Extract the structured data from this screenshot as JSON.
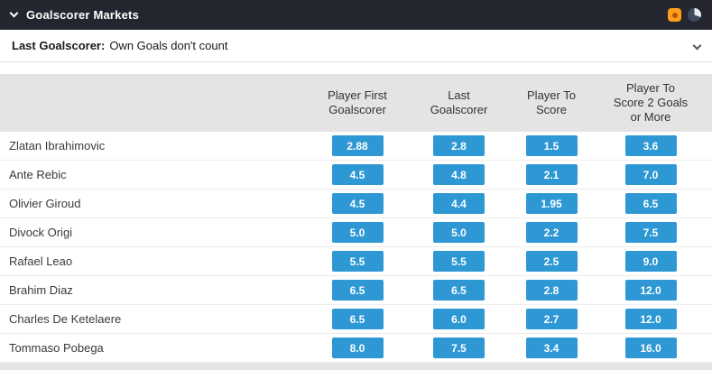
{
  "header": {
    "title": "Goalscorer Markets"
  },
  "subheader": {
    "label": "Last Goalscorer:",
    "note": "Own Goals don't count"
  },
  "table": {
    "columns": [
      "Player First Goalscorer",
      "Last Goalscorer",
      "Player To Score",
      "Player To Score 2 Goals or More"
    ],
    "rows": [
      {
        "player": "Zlatan Ibrahimovic",
        "odds": [
          "2.88",
          "2.8",
          "1.5",
          "3.6"
        ]
      },
      {
        "player": "Ante Rebic",
        "odds": [
          "4.5",
          "4.8",
          "2.1",
          "7.0"
        ]
      },
      {
        "player": "Olivier Giroud",
        "odds": [
          "4.5",
          "4.4",
          "1.95",
          "6.5"
        ]
      },
      {
        "player": "Divock Origi",
        "odds": [
          "5.0",
          "5.0",
          "2.2",
          "7.5"
        ]
      },
      {
        "player": "Rafael Leao",
        "odds": [
          "5.5",
          "5.5",
          "2.5",
          "9.0"
        ]
      },
      {
        "player": "Brahim Diaz",
        "odds": [
          "6.5",
          "6.5",
          "2.8",
          "12.0"
        ]
      },
      {
        "player": "Charles De Ketelaere",
        "odds": [
          "6.5",
          "6.0",
          "2.7",
          "12.0"
        ]
      },
      {
        "player": "Tommaso Pobega",
        "odds": [
          "8.0",
          "7.5",
          "3.4",
          "16.0"
        ]
      }
    ]
  },
  "icons": {
    "collapse": "chevron-down-icon",
    "expand": "chevron-down-icon",
    "featured": "featured-orange-icon",
    "timer": "clock-icon"
  },
  "colors": {
    "odds_blue": "#2d98d4",
    "header_dark": "#23262e",
    "icon_orange": "#ff9e18",
    "header_gray": "#e4e4e4"
  }
}
